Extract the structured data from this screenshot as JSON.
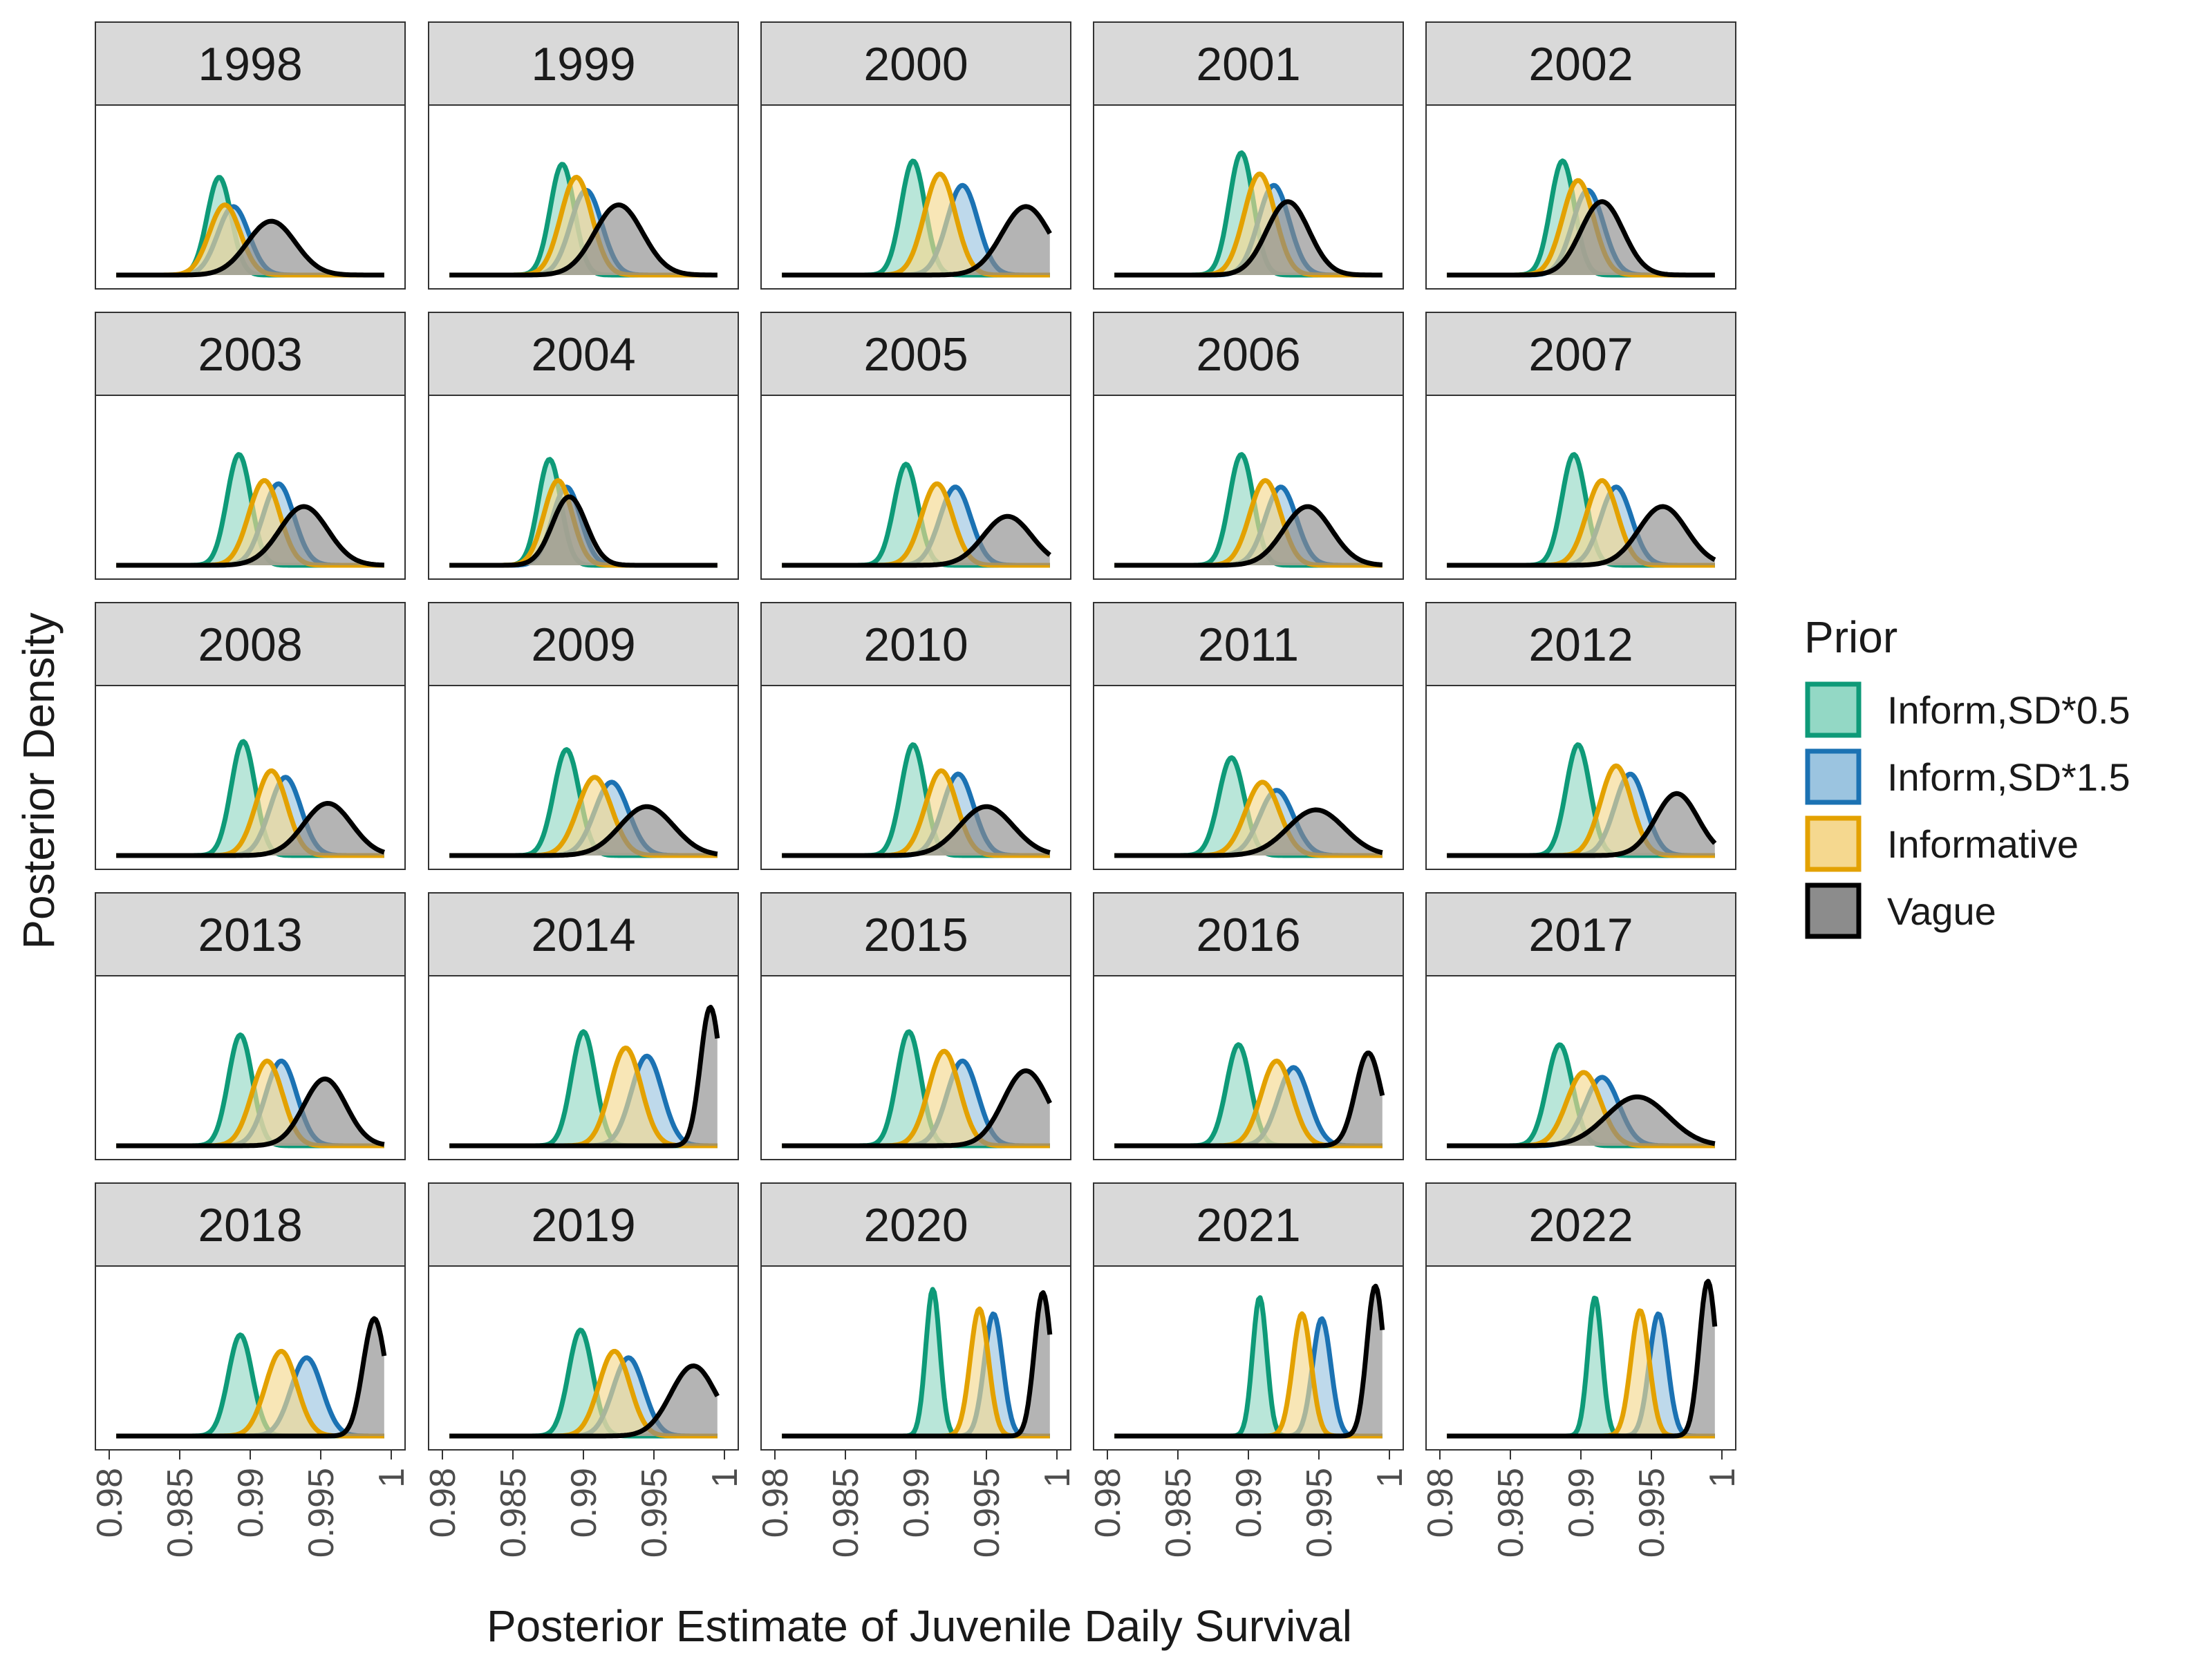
{
  "chart_data": {
    "type": "area",
    "layout": "facet-grid-5x5",
    "xlabel": "Posterior Estimate of Juvenile Daily Survival",
    "ylabel": "Posterior Density",
    "x_ticks": [
      "0.98",
      "0.985",
      "0.99",
      "0.995",
      "1"
    ],
    "xlim": [
      0.98,
      1.0
    ],
    "legend": {
      "title": "Prior",
      "placement": "right",
      "entries": [
        {
          "key": "inform05",
          "label": "Inform,SD*0.5",
          "line": "#0e9a78",
          "fill": "#93d8c5"
        },
        {
          "key": "inform15",
          "label": "Inform,SD*1.5",
          "line": "#1b72b3",
          "fill": "#9bc4e0"
        },
        {
          "key": "informative",
          "label": "Informative",
          "line": "#e3a100",
          "fill": "#f5d88f"
        },
        {
          "key": "vague",
          "label": "Vague",
          "line": "#000000",
          "fill": "#8c8c8c"
        }
      ]
    },
    "series_note_units": "mode (data units), sd (data units), peak (relative density)",
    "panels": [
      {
        "year": "1998",
        "curves": [
          {
            "key": "inform05",
            "mode": 0.9878,
            "sd": 0.00085,
            "peak": 0.6
          },
          {
            "key": "inform15",
            "mode": 0.9888,
            "sd": 0.0011,
            "peak": 0.42
          },
          {
            "key": "informative",
            "mode": 0.9882,
            "sd": 0.0011,
            "peak": 0.43
          },
          {
            "key": "vague",
            "mode": 0.9915,
            "sd": 0.0017,
            "peak": 0.33
          }
        ]
      },
      {
        "year": "1999",
        "curves": [
          {
            "key": "inform05",
            "mode": 0.9885,
            "sd": 0.00085,
            "peak": 0.68
          },
          {
            "key": "inform15",
            "mode": 0.9902,
            "sd": 0.0011,
            "peak": 0.52
          },
          {
            "key": "informative",
            "mode": 0.9895,
            "sd": 0.0011,
            "peak": 0.6
          },
          {
            "key": "vague",
            "mode": 0.9925,
            "sd": 0.0017,
            "peak": 0.43
          }
        ]
      },
      {
        "year": "2000",
        "curves": [
          {
            "key": "inform05",
            "mode": 0.9898,
            "sd": 0.00085,
            "peak": 0.7
          },
          {
            "key": "inform15",
            "mode": 0.9933,
            "sd": 0.0011,
            "peak": 0.55
          },
          {
            "key": "informative",
            "mode": 0.9917,
            "sd": 0.0011,
            "peak": 0.62
          },
          {
            "key": "vague",
            "mode": 0.9978,
            "sd": 0.0017,
            "peak": 0.42
          }
        ]
      },
      {
        "year": "2001",
        "curves": [
          {
            "key": "inform05",
            "mode": 0.9895,
            "sd": 0.00085,
            "peak": 0.75
          },
          {
            "key": "inform15",
            "mode": 0.9918,
            "sd": 0.0011,
            "peak": 0.55
          },
          {
            "key": "informative",
            "mode": 0.9908,
            "sd": 0.0011,
            "peak": 0.62
          },
          {
            "key": "vague",
            "mode": 0.9928,
            "sd": 0.0015,
            "peak": 0.45
          }
        ]
      },
      {
        "year": "2002",
        "curves": [
          {
            "key": "inform05",
            "mode": 0.9887,
            "sd": 0.00085,
            "peak": 0.7
          },
          {
            "key": "inform15",
            "mode": 0.9905,
            "sd": 0.0011,
            "peak": 0.52
          },
          {
            "key": "informative",
            "mode": 0.9898,
            "sd": 0.0011,
            "peak": 0.58
          },
          {
            "key": "vague",
            "mode": 0.9915,
            "sd": 0.0015,
            "peak": 0.45
          }
        ]
      },
      {
        "year": "2003",
        "curves": [
          {
            "key": "inform05",
            "mode": 0.9892,
            "sd": 0.00085,
            "peak": 0.68
          },
          {
            "key": "inform15",
            "mode": 0.992,
            "sd": 0.0011,
            "peak": 0.5
          },
          {
            "key": "informative",
            "mode": 0.991,
            "sd": 0.0011,
            "peak": 0.52
          },
          {
            "key": "vague",
            "mode": 0.9938,
            "sd": 0.0017,
            "peak": 0.36
          }
        ]
      },
      {
        "year": "2004",
        "curves": [
          {
            "key": "inform05",
            "mode": 0.9876,
            "sd": 0.0008,
            "peak": 0.65
          },
          {
            "key": "inform15",
            "mode": 0.9888,
            "sd": 0.001,
            "peak": 0.48
          },
          {
            "key": "informative",
            "mode": 0.9882,
            "sd": 0.001,
            "peak": 0.52
          },
          {
            "key": "vague",
            "mode": 0.989,
            "sd": 0.0012,
            "peak": 0.42
          }
        ]
      },
      {
        "year": "2005",
        "curves": [
          {
            "key": "inform05",
            "mode": 0.9893,
            "sd": 0.00085,
            "peak": 0.62
          },
          {
            "key": "inform15",
            "mode": 0.9928,
            "sd": 0.0011,
            "peak": 0.48
          },
          {
            "key": "informative",
            "mode": 0.9915,
            "sd": 0.0011,
            "peak": 0.5
          },
          {
            "key": "vague",
            "mode": 0.9965,
            "sd": 0.0017,
            "peak": 0.3
          }
        ]
      },
      {
        "year": "2006",
        "curves": [
          {
            "key": "inform05",
            "mode": 0.9895,
            "sd": 0.00085,
            "peak": 0.68
          },
          {
            "key": "inform15",
            "mode": 0.9923,
            "sd": 0.0011,
            "peak": 0.48
          },
          {
            "key": "informative",
            "mode": 0.9912,
            "sd": 0.0011,
            "peak": 0.52
          },
          {
            "key": "vague",
            "mode": 0.9942,
            "sd": 0.0017,
            "peak": 0.36
          }
        ]
      },
      {
        "year": "2007",
        "curves": [
          {
            "key": "inform05",
            "mode": 0.9895,
            "sd": 0.00085,
            "peak": 0.68
          },
          {
            "key": "inform15",
            "mode": 0.9925,
            "sd": 0.0011,
            "peak": 0.48
          },
          {
            "key": "informative",
            "mode": 0.9915,
            "sd": 0.0011,
            "peak": 0.52
          },
          {
            "key": "vague",
            "mode": 0.9958,
            "sd": 0.0017,
            "peak": 0.36
          }
        ]
      },
      {
        "year": "2008",
        "curves": [
          {
            "key": "inform05",
            "mode": 0.9895,
            "sd": 0.00085,
            "peak": 0.7
          },
          {
            "key": "inform15",
            "mode": 0.9925,
            "sd": 0.0011,
            "peak": 0.48
          },
          {
            "key": "informative",
            "mode": 0.9915,
            "sd": 0.0011,
            "peak": 0.52
          },
          {
            "key": "vague",
            "mode": 0.9955,
            "sd": 0.0017,
            "peak": 0.32
          }
        ]
      },
      {
        "year": "2009",
        "curves": [
          {
            "key": "inform05",
            "mode": 0.9888,
            "sd": 0.0009,
            "peak": 0.65
          },
          {
            "key": "inform15",
            "mode": 0.992,
            "sd": 0.0012,
            "peak": 0.45
          },
          {
            "key": "informative",
            "mode": 0.9908,
            "sd": 0.0012,
            "peak": 0.48
          },
          {
            "key": "vague",
            "mode": 0.9945,
            "sd": 0.0019,
            "peak": 0.3
          }
        ]
      },
      {
        "year": "2010",
        "curves": [
          {
            "key": "inform05",
            "mode": 0.9898,
            "sd": 0.00085,
            "peak": 0.68
          },
          {
            "key": "inform15",
            "mode": 0.993,
            "sd": 0.0011,
            "peak": 0.5
          },
          {
            "key": "informative",
            "mode": 0.9918,
            "sd": 0.0011,
            "peak": 0.52
          },
          {
            "key": "vague",
            "mode": 0.995,
            "sd": 0.0019,
            "peak": 0.3
          }
        ]
      },
      {
        "year": "2011",
        "curves": [
          {
            "key": "inform05",
            "mode": 0.9888,
            "sd": 0.0009,
            "peak": 0.6
          },
          {
            "key": "inform15",
            "mode": 0.992,
            "sd": 0.0012,
            "peak": 0.4
          },
          {
            "key": "informative",
            "mode": 0.991,
            "sd": 0.0012,
            "peak": 0.45
          },
          {
            "key": "vague",
            "mode": 0.9948,
            "sd": 0.002,
            "peak": 0.28
          }
        ]
      },
      {
        "year": "2012",
        "curves": [
          {
            "key": "inform05",
            "mode": 0.9898,
            "sd": 0.00085,
            "peak": 0.68
          },
          {
            "key": "inform15",
            "mode": 0.9935,
            "sd": 0.0011,
            "peak": 0.5
          },
          {
            "key": "informative",
            "mode": 0.9925,
            "sd": 0.0011,
            "peak": 0.55
          },
          {
            "key": "vague",
            "mode": 0.9968,
            "sd": 0.0015,
            "peak": 0.38
          }
        ]
      },
      {
        "year": "2013",
        "curves": [
          {
            "key": "inform05",
            "mode": 0.9893,
            "sd": 0.00085,
            "peak": 0.68
          },
          {
            "key": "inform15",
            "mode": 0.9922,
            "sd": 0.0011,
            "peak": 0.52
          },
          {
            "key": "informative",
            "mode": 0.9912,
            "sd": 0.0011,
            "peak": 0.52
          },
          {
            "key": "vague",
            "mode": 0.9953,
            "sd": 0.0015,
            "peak": 0.41
          }
        ]
      },
      {
        "year": "2014",
        "curves": [
          {
            "key": "inform05",
            "mode": 0.99,
            "sd": 0.00085,
            "peak": 0.7
          },
          {
            "key": "inform15",
            "mode": 0.9945,
            "sd": 0.0011,
            "peak": 0.55
          },
          {
            "key": "informative",
            "mode": 0.993,
            "sd": 0.0011,
            "peak": 0.6
          },
          {
            "key": "vague",
            "mode": 0.999,
            "sd": 0.0007,
            "peak": 0.85
          }
        ]
      },
      {
        "year": "2015",
        "curves": [
          {
            "key": "inform05",
            "mode": 0.9895,
            "sd": 0.00085,
            "peak": 0.7
          },
          {
            "key": "inform15",
            "mode": 0.9933,
            "sd": 0.0011,
            "peak": 0.52
          },
          {
            "key": "informative",
            "mode": 0.992,
            "sd": 0.0011,
            "peak": 0.58
          },
          {
            "key": "vague",
            "mode": 0.9978,
            "sd": 0.0016,
            "peak": 0.46
          }
        ]
      },
      {
        "year": "2016",
        "curves": [
          {
            "key": "inform05",
            "mode": 0.9893,
            "sd": 0.00085,
            "peak": 0.62
          },
          {
            "key": "inform15",
            "mode": 0.9932,
            "sd": 0.0011,
            "peak": 0.48
          },
          {
            "key": "informative",
            "mode": 0.992,
            "sd": 0.0011,
            "peak": 0.52
          },
          {
            "key": "vague",
            "mode": 0.9985,
            "sd": 0.0009,
            "peak": 0.57
          }
        ]
      },
      {
        "year": "2017",
        "curves": [
          {
            "key": "inform05",
            "mode": 0.9885,
            "sd": 0.0009,
            "peak": 0.62
          },
          {
            "key": "inform15",
            "mode": 0.9915,
            "sd": 0.0012,
            "peak": 0.42
          },
          {
            "key": "informative",
            "mode": 0.9902,
            "sd": 0.0012,
            "peak": 0.45
          },
          {
            "key": "vague",
            "mode": 0.994,
            "sd": 0.0022,
            "peak": 0.3
          }
        ]
      },
      {
        "year": "2018",
        "curves": [
          {
            "key": "inform05",
            "mode": 0.9893,
            "sd": 0.00085,
            "peak": 0.62
          },
          {
            "key": "inform15",
            "mode": 0.994,
            "sd": 0.0011,
            "peak": 0.48
          },
          {
            "key": "informative",
            "mode": 0.9922,
            "sd": 0.0011,
            "peak": 0.52
          },
          {
            "key": "vague",
            "mode": 0.9988,
            "sd": 0.0008,
            "peak": 0.72
          }
        ]
      },
      {
        "year": "2019",
        "curves": [
          {
            "key": "inform05",
            "mode": 0.9898,
            "sd": 0.00085,
            "peak": 0.65
          },
          {
            "key": "inform15",
            "mode": 0.9932,
            "sd": 0.0011,
            "peak": 0.48
          },
          {
            "key": "informative",
            "mode": 0.9922,
            "sd": 0.0011,
            "peak": 0.52
          },
          {
            "key": "vague",
            "mode": 0.9978,
            "sd": 0.0016,
            "peak": 0.43
          }
        ]
      },
      {
        "year": "2020",
        "curves": [
          {
            "key": "inform05",
            "mode": 0.9912,
            "sd": 0.0005,
            "peak": 0.9
          },
          {
            "key": "inform15",
            "mode": 0.9955,
            "sd": 0.00065,
            "peak": 0.75
          },
          {
            "key": "informative",
            "mode": 0.9945,
            "sd": 0.00065,
            "peak": 0.78
          },
          {
            "key": "vague",
            "mode": 0.999,
            "sd": 0.0006,
            "peak": 0.88
          }
        ]
      },
      {
        "year": "2021",
        "curves": [
          {
            "key": "inform05",
            "mode": 0.9908,
            "sd": 0.0005,
            "peak": 0.85
          },
          {
            "key": "inform15",
            "mode": 0.9952,
            "sd": 0.00065,
            "peak": 0.72
          },
          {
            "key": "informative",
            "mode": 0.9938,
            "sd": 0.00065,
            "peak": 0.75
          },
          {
            "key": "vague",
            "mode": 0.999,
            "sd": 0.0006,
            "peak": 0.92
          }
        ]
      },
      {
        "year": "2022",
        "curves": [
          {
            "key": "inform05",
            "mode": 0.991,
            "sd": 0.0005,
            "peak": 0.85
          },
          {
            "key": "inform15",
            "mode": 0.9955,
            "sd": 0.00065,
            "peak": 0.75
          },
          {
            "key": "informative",
            "mode": 0.9942,
            "sd": 0.00065,
            "peak": 0.77
          },
          {
            "key": "vague",
            "mode": 0.999,
            "sd": 0.0006,
            "peak": 0.95
          }
        ]
      }
    ]
  }
}
